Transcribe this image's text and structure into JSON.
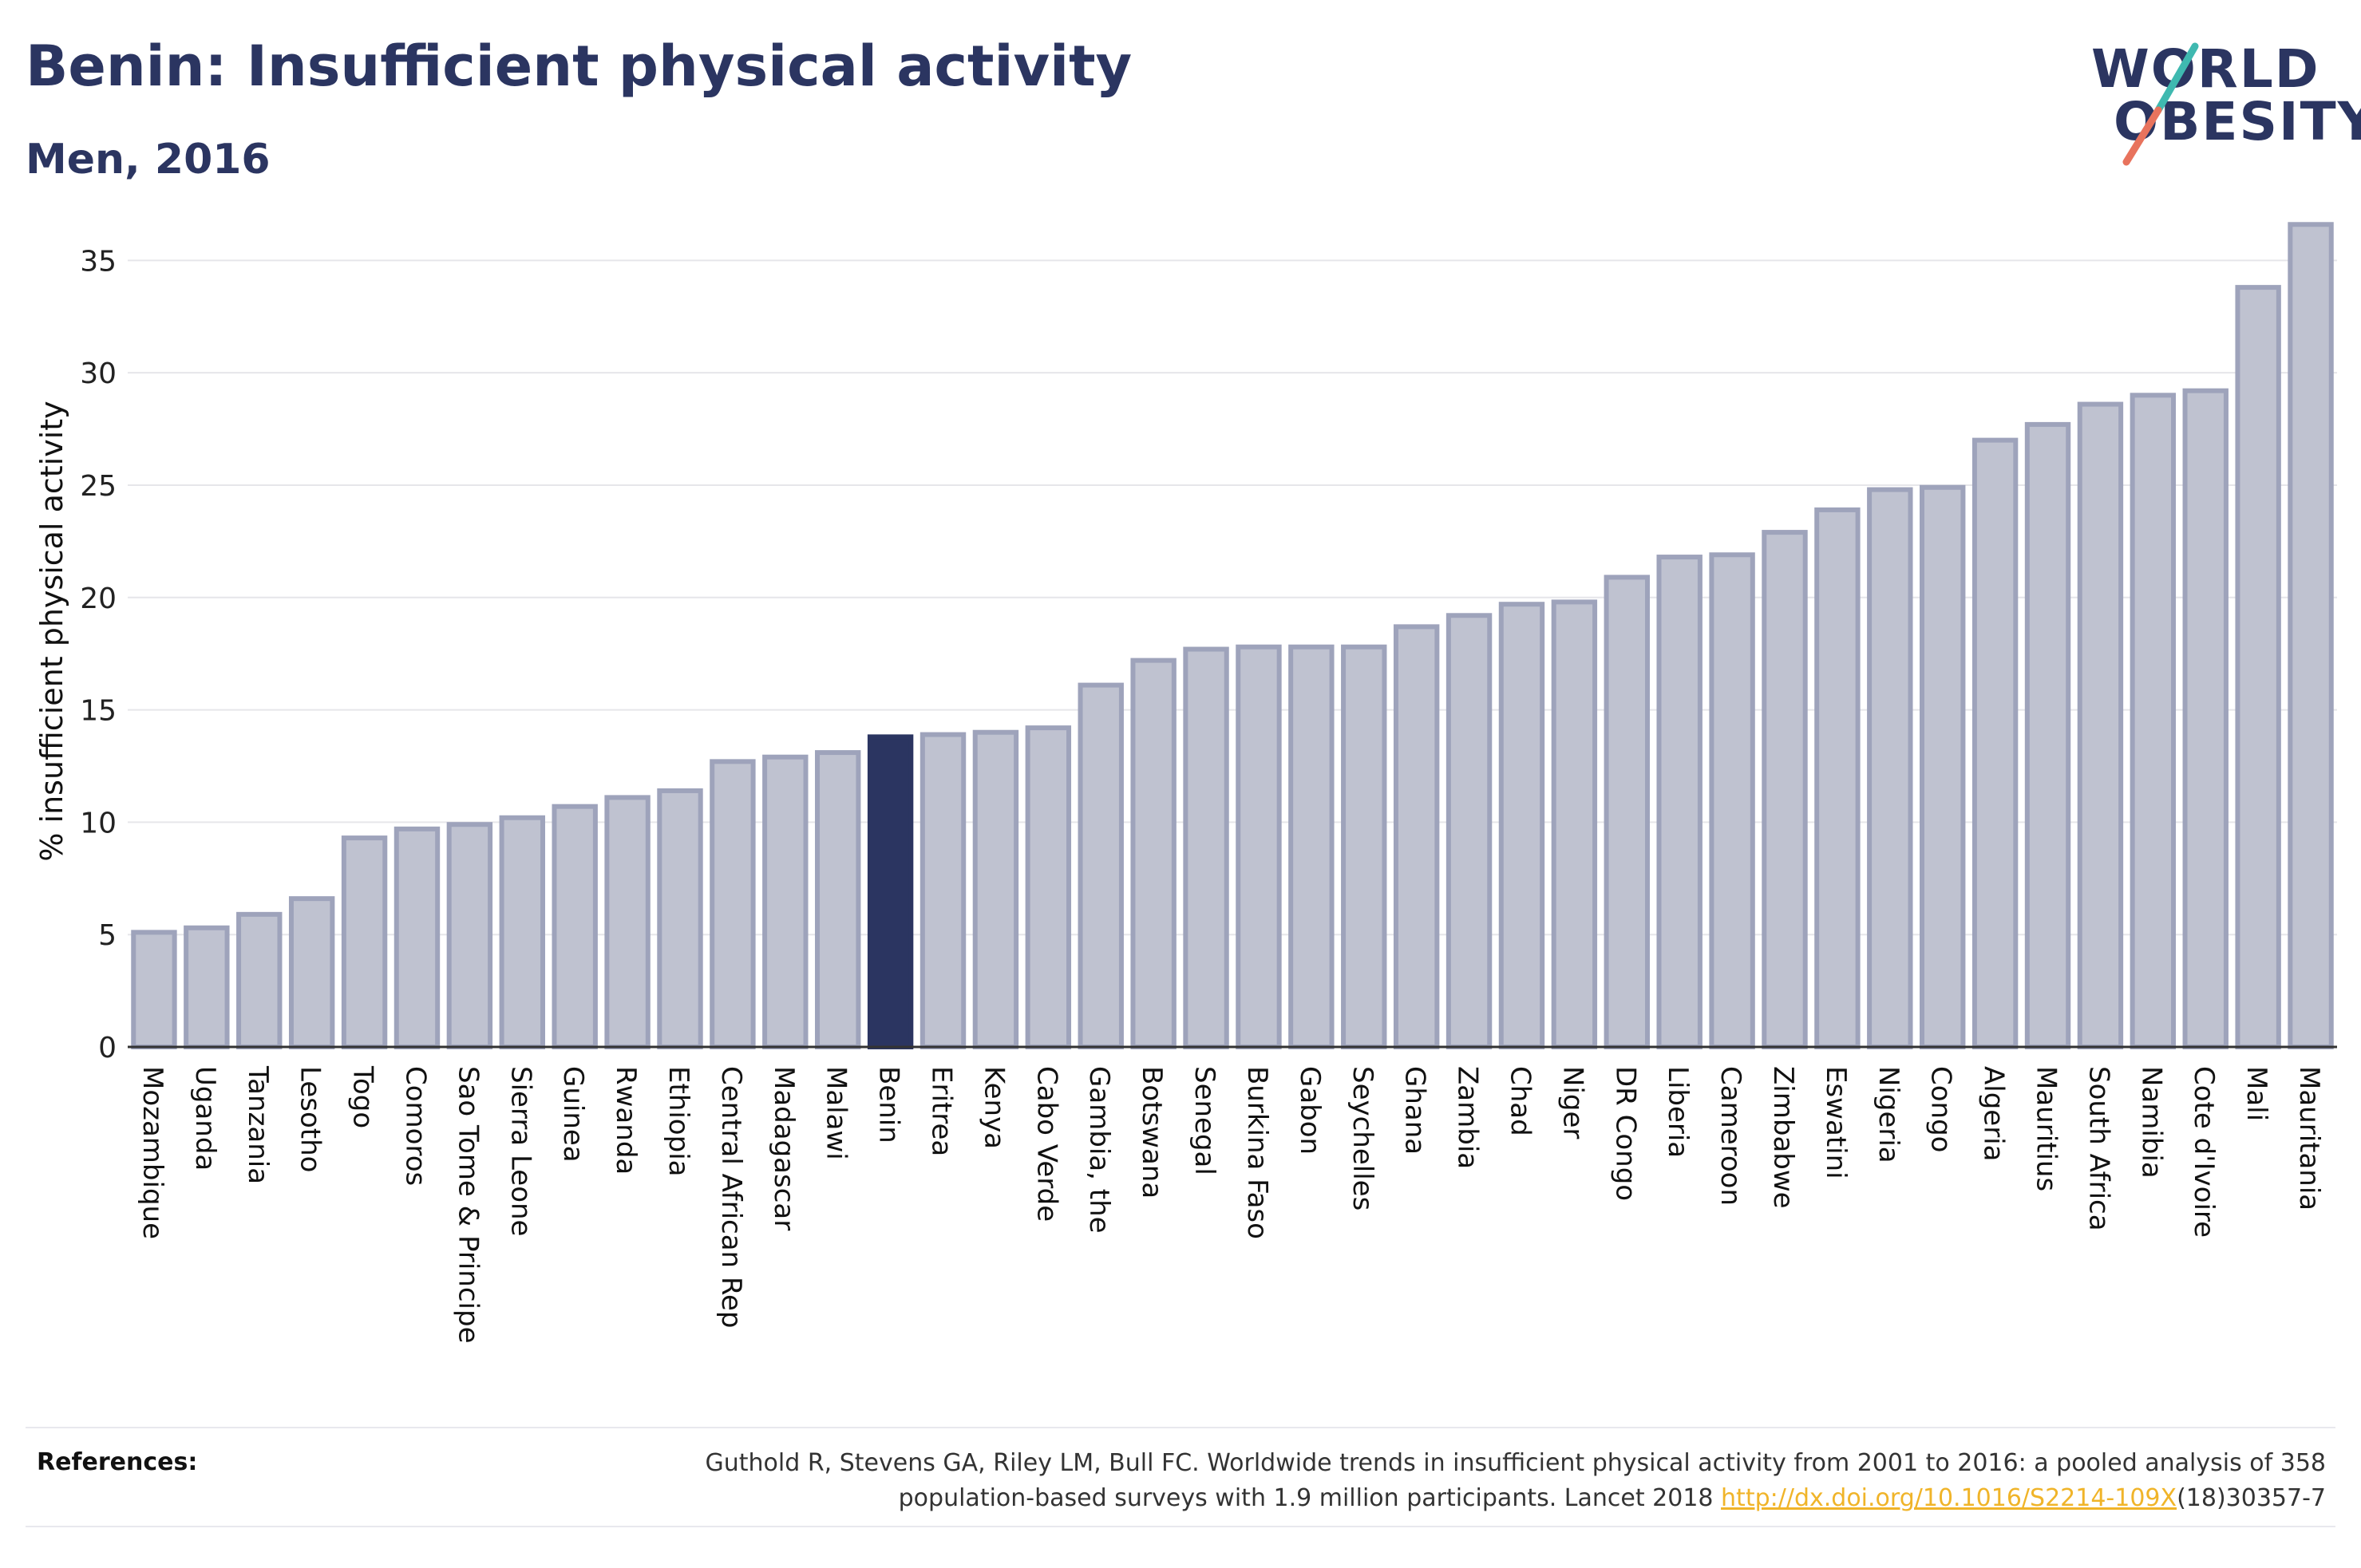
{
  "header": {
    "title": "Benin: Insufficient physical activity",
    "subtitle": "Men, 2016"
  },
  "logo": {
    "line1": "WORLD",
    "line2": "OBESITY",
    "slash_colors": [
      "#3fb9b0",
      "#e8735d"
    ]
  },
  "colors": {
    "bar_fill": "#bfc2d0",
    "bar_stroke": "#9ea3bb",
    "highlight": "#2b3561",
    "grid": "#e6e6ea",
    "axis": "#333333"
  },
  "chart_data": {
    "type": "bar",
    "title": "Benin: Insufficient physical activity",
    "subtitle": "Men, 2016",
    "xlabel": "",
    "ylabel": "% insufficient physical activity",
    "ylim": [
      0,
      37
    ],
    "yticks": [
      0,
      5,
      10,
      15,
      20,
      25,
      30,
      35
    ],
    "grid": true,
    "highlight_category": "Benin",
    "categories": [
      "Mozambique",
      "Uganda",
      "Tanzania",
      "Lesotho",
      "Togo",
      "Comoros",
      "Sao Tome & Principe",
      "Sierra Leone",
      "Guinea",
      "Rwanda",
      "Ethiopia",
      "Central African Rep",
      "Madagascar",
      "Malawi",
      "Benin",
      "Eritrea",
      "Kenya",
      "Cabo Verde",
      "Gambia, the",
      "Botswana",
      "Senegal",
      "Burkina Faso",
      "Gabon",
      "Seychelles",
      "Ghana",
      "Zambia",
      "Chad",
      "Niger",
      "DR Congo",
      "Liberia",
      "Cameroon",
      "Zimbabwe",
      "Eswatini",
      "Nigeria",
      "Congo",
      "Algeria",
      "Mauritius",
      "South Africa",
      "Namibia",
      "Cote d'Ivoire",
      "Mali",
      "Mauritania"
    ],
    "values": [
      5.1,
      5.3,
      5.9,
      6.6,
      9.3,
      9.7,
      9.9,
      10.2,
      10.7,
      11.1,
      11.4,
      12.7,
      12.9,
      13.1,
      13.8,
      13.9,
      14.0,
      14.2,
      16.1,
      17.2,
      17.7,
      17.8,
      17.8,
      17.8,
      18.7,
      19.2,
      19.7,
      19.8,
      20.9,
      21.8,
      21.9,
      22.9,
      23.9,
      24.8,
      24.9,
      27.0,
      27.7,
      28.6,
      29.0,
      29.2,
      33.8,
      36.6
    ]
  },
  "references": {
    "label": "References:",
    "line1": "Guthold R, Stevens GA, Riley LM, Bull FC. Worldwide trends in insufficient physical activity from 2001 to 2016: a pooled analysis of 358",
    "line2_pre": "population-based surveys with 1.9 million participants. Lancet 2018 ",
    "link": "http://dx.doi.org/10.1016/S2214-109X",
    "line2_post": "(18)30357-7"
  }
}
